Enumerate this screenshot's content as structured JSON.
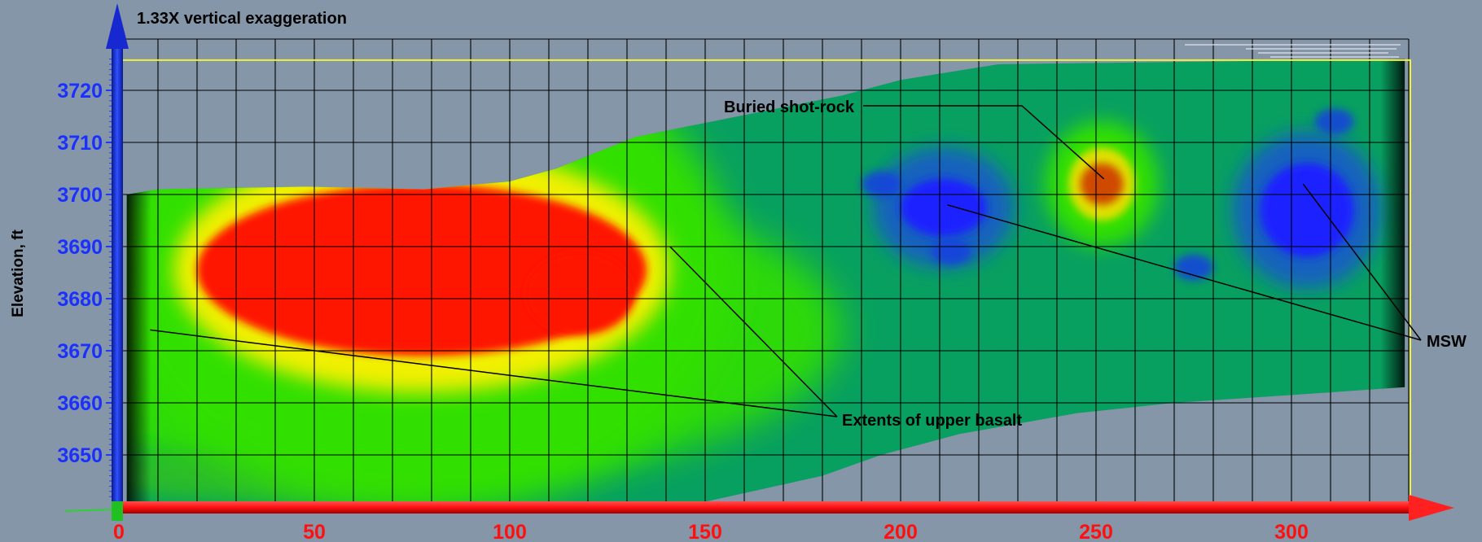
{
  "chart_data": {
    "type": "heatmap",
    "title": "1.33X vertical exaggeration",
    "xlabel": "",
    "ylabel": "Elevation, ft",
    "xlim": [
      0,
      330
    ],
    "ylim": [
      3641,
      3726
    ],
    "x_ticks": [
      0,
      50,
      100,
      150,
      200,
      250,
      300
    ],
    "y_ticks": [
      3650,
      3660,
      3670,
      3680,
      3690,
      3700,
      3710,
      3720
    ],
    "grid": true,
    "x_grid_step": 10,
    "y_grid_step": 10,
    "colors": {
      "background": "#8496a8",
      "low_value": "#1a20ff",
      "mid_value": "#08a060",
      "bright_green": "#30e000",
      "yellow": "#f0f000",
      "high_value": "#ff1800",
      "x_axis": "#ff2020",
      "y_axis": "#1530e0",
      "tick_label_x": "#ff1010",
      "tick_label_y": "#1a30ff",
      "boundary": "#f0f040"
    },
    "anomalies": [
      {
        "label": "upper-basalt-high",
        "x_range": [
          20,
          135
        ],
        "y_range": [
          3669,
          3702
        ],
        "level": "high"
      },
      {
        "label": "shot-rock-high",
        "x_range": [
          245,
          258
        ],
        "y_range": [
          3697,
          3707
        ],
        "level": "high"
      },
      {
        "label": "msw-low-1",
        "x_range": [
          198,
          224
        ],
        "y_range": [
          3690,
          3705
        ],
        "level": "low"
      },
      {
        "label": "msw-low-2",
        "x_range": [
          290,
          318
        ],
        "y_range": [
          3686,
          3708
        ],
        "level": "low"
      }
    ],
    "annotations": [
      {
        "text": "Buried shot-rock",
        "points": [
          [
            252,
            3703
          ]
        ]
      },
      {
        "text": "Extents of upper basalt",
        "points": [
          [
            8,
            3674
          ],
          [
            141,
            3690
          ]
        ]
      },
      {
        "text": "MSW",
        "points": [
          [
            212,
            3698
          ],
          [
            303,
            3702
          ]
        ]
      }
    ]
  }
}
